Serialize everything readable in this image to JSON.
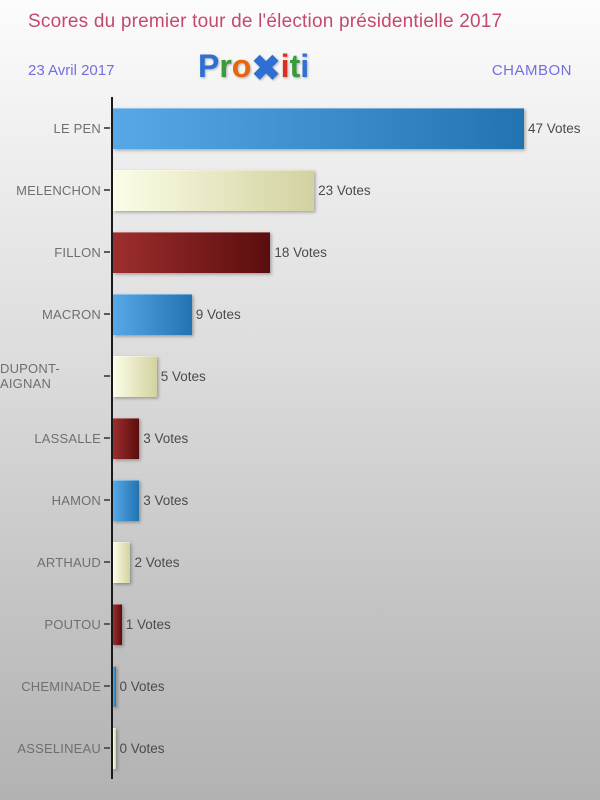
{
  "header": {
    "title": "Scores du premier tour de l'élection présidentielle 2017",
    "title_color": "#c5496d",
    "date": "23 Avril 2017",
    "place": "CHAMBON",
    "meta_color": "#7170e2"
  },
  "logo": {
    "name": "proxiti-logo",
    "letters": [
      {
        "ch": "P",
        "color": "#2e6fd4"
      },
      {
        "ch": "r",
        "color": "#3a9b3a"
      },
      {
        "ch": "o",
        "color": "#e8650d"
      },
      {
        "ch": "✖",
        "color": "#2e6fd4",
        "big": true
      },
      {
        "ch": "i",
        "color": "#d93025"
      },
      {
        "ch": "t",
        "color": "#3a9b3a"
      },
      {
        "ch": "i",
        "color": "#2e6fd4"
      }
    ]
  },
  "chart_data": {
    "type": "bar",
    "orientation": "horizontal",
    "title": "Scores du premier tour de l'élection présidentielle 2017",
    "categories": [
      "LE PEN",
      "MELENCHON",
      "FILLON",
      "MACRON",
      "DUPONT-AIGNAN",
      "LASSALLE",
      "HAMON",
      "ARTHAUD",
      "POUTOU",
      "CHEMINADE",
      "ASSELINEAU"
    ],
    "values": [
      47,
      23,
      18,
      9,
      5,
      3,
      3,
      2,
      1,
      0,
      0
    ],
    "value_suffix": "Votes",
    "xlim": [
      0,
      47
    ],
    "grid": false,
    "legend": false,
    "bar_colors_cycle": [
      {
        "name": "blue",
        "from": "#56a8e6",
        "to": "#2273b1"
      },
      {
        "name": "cream",
        "from": "#fdfde8",
        "to": "#d2d2a0"
      },
      {
        "name": "darkred",
        "from": "#9d2e2e",
        "to": "#5b0d0d"
      }
    ],
    "axis_color": "#1a1a1a",
    "label_color": "#6f6f6f",
    "value_color": "#4b4b4b"
  }
}
